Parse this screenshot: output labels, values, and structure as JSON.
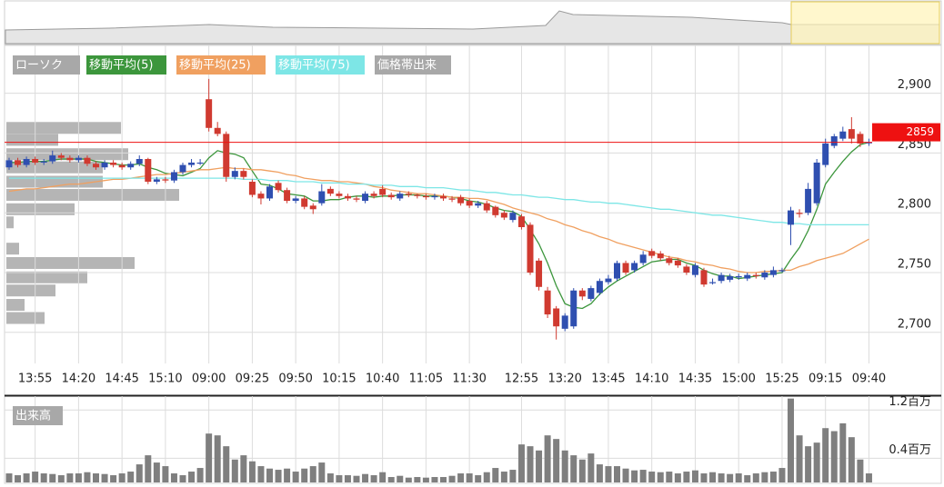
{
  "chart_data": {
    "type": "candlestick",
    "candle_name": "ローソク",
    "up_color": "#2f4fb0",
    "down_color": "#d03a30",
    "categories": [
      null,
      null,
      null,
      "13:55",
      null,
      null,
      null,
      null,
      "14:20",
      null,
      null,
      null,
      null,
      "14:45",
      null,
      null,
      null,
      null,
      "15:10",
      null,
      null,
      null,
      null,
      "09:00",
      null,
      null,
      null,
      null,
      "09:25",
      null,
      null,
      null,
      null,
      "09:50",
      null,
      null,
      null,
      null,
      "10:15",
      null,
      null,
      null,
      null,
      "10:40",
      null,
      null,
      null,
      null,
      "11:05",
      null,
      null,
      null,
      null,
      "11:30",
      null,
      null,
      null,
      null,
      null,
      "12:55",
      null,
      null,
      null,
      null,
      "13:20",
      null,
      null,
      null,
      null,
      "13:45",
      null,
      null,
      null,
      null,
      "14:10",
      null,
      null,
      null,
      null,
      "14:35",
      null,
      null,
      null,
      null,
      "15:00",
      null,
      null,
      null,
      null,
      "15:25",
      null,
      null,
      null,
      null,
      "09:15",
      null,
      null,
      null,
      null,
      "09:40"
    ],
    "open": [
      2838,
      2844,
      2840,
      2845,
      2842,
      2843,
      2848,
      2846,
      2844,
      2846,
      2841,
      2838,
      2842,
      2840,
      2838,
      2841,
      2845,
      2826,
      2828,
      2827,
      2834,
      2840,
      2842,
      2895,
      2871,
      2866,
      2830,
      2835,
      2826,
      2816,
      2812,
      2825,
      2819,
      2810,
      2812,
      2806,
      2808,
      2820,
      2816,
      2814,
      2812,
      2810,
      2816,
      2820,
      2815,
      2812,
      2816,
      2815,
      2814,
      2813,
      2814,
      2812,
      2813,
      2810,
      2806,
      2808,
      2805,
      2800,
      2794,
      2797,
      2790,
      2760,
      2735,
      2720,
      2703,
      2705,
      2735,
      2728,
      2733,
      2742,
      2745,
      2758,
      2752,
      2758,
      2768,
      2766,
      2762,
      2760,
      2755,
      2748,
      2752,
      2742,
      2743,
      2744,
      2746,
      2745,
      2748,
      2746,
      2748,
      2752,
      2790,
      2800,
      2800,
      2808,
      2840,
      2856,
      2862,
      2870,
      2866,
      2859
    ],
    "high": [
      2846,
      2846,
      2847,
      2847,
      2845,
      2852,
      2850,
      2848,
      2848,
      2848,
      2843,
      2844,
      2844,
      2842,
      2843,
      2848,
      2846,
      2830,
      2830,
      2836,
      2842,
      2845,
      2845,
      2912,
      2876,
      2868,
      2838,
      2837,
      2828,
      2818,
      2824,
      2827,
      2821,
      2814,
      2814,
      2808,
      2824,
      2822,
      2818,
      2816,
      2814,
      2818,
      2818,
      2823,
      2817,
      2818,
      2818,
      2816,
      2816,
      2816,
      2816,
      2814,
      2815,
      2812,
      2810,
      2810,
      2806,
      2802,
      2802,
      2799,
      2792,
      2762,
      2738,
      2722,
      2716,
      2737,
      2737,
      2739,
      2745,
      2748,
      2760,
      2760,
      2760,
      2768,
      2770,
      2768,
      2764,
      2762,
      2757,
      2758,
      2754,
      2745,
      2750,
      2749,
      2749,
      2750,
      2750,
      2752,
      2755,
      2754,
      2805,
      2803,
      2825,
      2845,
      2862,
      2866,
      2872,
      2880,
      2868,
      2862
    ],
    "low": [
      2836,
      2838,
      2838,
      2840,
      2840,
      2841,
      2844,
      2842,
      2842,
      2839,
      2836,
      2836,
      2838,
      2836,
      2836,
      2839,
      2824,
      2824,
      2825,
      2825,
      2832,
      2838,
      2840,
      2868,
      2864,
      2826,
      2828,
      2828,
      2813,
      2807,
      2810,
      2817,
      2808,
      2808,
      2803,
      2799,
      2806,
      2814,
      2812,
      2810,
      2809,
      2808,
      2812,
      2813,
      2811,
      2810,
      2813,
      2812,
      2811,
      2811,
      2810,
      2809,
      2806,
      2804,
      2804,
      2800,
      2796,
      2794,
      2792,
      2786,
      2748,
      2735,
      2712,
      2694,
      2701,
      2703,
      2727,
      2726,
      2731,
      2740,
      2743,
      2748,
      2750,
      2756,
      2762,
      2760,
      2756,
      2754,
      2748,
      2746,
      2738,
      2740,
      2741,
      2742,
      2744,
      2743,
      2745,
      2744,
      2746,
      2750,
      2773,
      2796,
      2798,
      2806,
      2838,
      2854,
      2860,
      2858,
      2855,
      2856
    ],
    "close": [
      2844,
      2840,
      2845,
      2842,
      2843,
      2848,
      2846,
      2844,
      2846,
      2841,
      2838,
      2842,
      2840,
      2838,
      2841,
      2845,
      2826,
      2828,
      2827,
      2834,
      2840,
      2842,
      2842,
      2871,
      2866,
      2830,
      2835,
      2830,
      2815,
      2812,
      2822,
      2819,
      2810,
      2812,
      2805,
      2803,
      2818,
      2816,
      2814,
      2812,
      2811,
      2816,
      2814,
      2815,
      2813,
      2816,
      2815,
      2814,
      2813,
      2814,
      2812,
      2811,
      2808,
      2806,
      2808,
      2802,
      2798,
      2796,
      2800,
      2788,
      2750,
      2738,
      2715,
      2705,
      2714,
      2735,
      2730,
      2737,
      2743,
      2745,
      2758,
      2750,
      2758,
      2765,
      2764,
      2762,
      2758,
      2756,
      2750,
      2756,
      2740,
      2742,
      2748,
      2747,
      2747,
      2748,
      2747,
      2750,
      2752,
      2752,
      2802,
      2799,
      2820,
      2842,
      2858,
      2864,
      2868,
      2862,
      2858,
      2859
    ],
    "series": [
      {
        "name": "移動平均(5)",
        "color": "#3c963c",
        "values": [
          2842,
          2842,
          2843,
          2843,
          2843,
          2844,
          2845,
          2845,
          2845,
          2845,
          2843,
          2842,
          2841,
          2840,
          2840,
          2841,
          2838,
          2836,
          2833,
          2832,
          2831,
          2834,
          2837,
          2846,
          2852,
          2850,
          2849,
          2846,
          2835,
          2824,
          2823,
          2820,
          2816,
          2815,
          2814,
          2810,
          2810,
          2811,
          2811,
          2813,
          2814,
          2814,
          2813,
          2814,
          2814,
          2815,
          2815,
          2815,
          2814,
          2814,
          2814,
          2813,
          2812,
          2810,
          2809,
          2807,
          2804,
          2802,
          2801,
          2797,
          2786,
          2774,
          2758,
          2739,
          2724,
          2721,
          2720,
          2724,
          2732,
          2738,
          2743,
          2747,
          2751,
          2755,
          2759,
          2760,
          2761,
          2761,
          2758,
          2756,
          2752,
          2749,
          2747,
          2747,
          2745,
          2746,
          2747,
          2748,
          2749,
          2750,
          2761,
          2771,
          2785,
          2803,
          2824,
          2834,
          2843,
          2851,
          2857,
          2859
        ]
      },
      {
        "name": "移動平均(25)",
        "color": "#f0a060",
        "values": [
          2818,
          2819,
          2820,
          2820,
          2821,
          2822,
          2823,
          2824,
          2824,
          2825,
          2826,
          2827,
          2828,
          2828,
          2829,
          2830,
          2831,
          2832,
          2832,
          2833,
          2834,
          2835,
          2836,
          2836,
          2837,
          2838,
          2837,
          2837,
          2836,
          2836,
          2835,
          2834,
          2832,
          2831,
          2829,
          2828,
          2827,
          2827,
          2826,
          2826,
          2825,
          2824,
          2822,
          2821,
          2819,
          2818,
          2817,
          2816,
          2816,
          2815,
          2814,
          2813,
          2813,
          2812,
          2812,
          2811,
          2809,
          2807,
          2804,
          2802,
          2800,
          2798,
          2795,
          2793,
          2790,
          2788,
          2785,
          2783,
          2780,
          2778,
          2775,
          2773,
          2771,
          2769,
          2767,
          2765,
          2763,
          2762,
          2760,
          2759,
          2757,
          2756,
          2754,
          2753,
          2751,
          2750,
          2750,
          2751,
          2751,
          2752,
          2752,
          2755,
          2757,
          2760,
          2762,
          2764,
          2766,
          2770,
          2774,
          2778
        ]
      },
      {
        "name": "移動平均(75)",
        "color": "#7de6e6",
        "values": [
          2829,
          2829,
          2829,
          2829,
          2829,
          2829,
          2829,
          2829,
          2829,
          2829,
          2829,
          2829,
          2829,
          2829,
          2829,
          2829,
          2829,
          2829,
          2829,
          2829,
          2829,
          2829,
          2829,
          2829,
          2829,
          2829,
          2829,
          2828,
          2828,
          2828,
          2827,
          2827,
          2827,
          2826,
          2826,
          2826,
          2825,
          2825,
          2825,
          2824,
          2824,
          2824,
          2823,
          2823,
          2823,
          2822,
          2822,
          2822,
          2821,
          2821,
          2821,
          2820,
          2819,
          2819,
          2818,
          2817,
          2817,
          2816,
          2815,
          2815,
          2814,
          2813,
          2813,
          2812,
          2811,
          2811,
          2810,
          2809,
          2809,
          2808,
          2808,
          2807,
          2806,
          2805,
          2804,
          2803,
          2803,
          2802,
          2801,
          2800,
          2799,
          2798,
          2798,
          2797,
          2796,
          2795,
          2794,
          2793,
          2792,
          2792,
          2791,
          2791,
          2790,
          2790,
          2790,
          2790,
          2790,
          2790,
          2790,
          2790
        ]
      }
    ],
    "ylim": [
      2674,
      2940
    ],
    "yticks": [
      {
        "value": 2900,
        "label": "2,900"
      },
      {
        "value": 2850,
        "label": "2,850"
      },
      {
        "value": 2800,
        "label": "2,800"
      },
      {
        "value": 2750,
        "label": "2,750"
      },
      {
        "value": 2700,
        "label": "2,700"
      }
    ],
    "grid": true,
    "last_price": 2859,
    "last_price_color": "#ee1111",
    "profile": {
      "name": "価格帯出来",
      "color": "#a8a8a8",
      "prices": [
        2871,
        2861,
        2849,
        2838,
        2826,
        2815,
        2803,
        2792,
        2770,
        2758,
        2746,
        2735,
        2723,
        2712
      ],
      "values": [
        126,
        57,
        134,
        106,
        106,
        190,
        75,
        8,
        14,
        141,
        89,
        54,
        20,
        42
      ],
      "xlim": [
        0,
        200
      ]
    },
    "volume": {
      "name": "出来高",
      "color": "#7f7f7f",
      "values": [
        0.15,
        0.12,
        0.15,
        0.18,
        0.15,
        0.14,
        0.12,
        0.15,
        0.15,
        0.17,
        0.15,
        0.14,
        0.12,
        0.15,
        0.18,
        0.3,
        0.45,
        0.33,
        0.27,
        0.15,
        0.12,
        0.18,
        0.24,
        0.81,
        0.78,
        0.6,
        0.38,
        0.45,
        0.35,
        0.27,
        0.23,
        0.21,
        0.23,
        0.18,
        0.23,
        0.27,
        0.33,
        0.15,
        0.12,
        0.12,
        0.11,
        0.14,
        0.12,
        0.17,
        0.09,
        0.11,
        0.08,
        0.09,
        0.08,
        0.09,
        0.09,
        0.11,
        0.15,
        0.15,
        0.12,
        0.17,
        0.24,
        0.18,
        0.21,
        0.63,
        0.6,
        0.53,
        0.78,
        0.72,
        0.53,
        0.45,
        0.38,
        0.48,
        0.3,
        0.27,
        0.27,
        0.23,
        0.2,
        0.21,
        0.18,
        0.17,
        0.18,
        0.15,
        0.18,
        0.2,
        0.15,
        0.17,
        0.15,
        0.14,
        0.15,
        0.12,
        0.15,
        0.17,
        0.18,
        0.24,
        1.39,
        0.78,
        0.6,
        0.66,
        0.9,
        0.85,
        0.98,
        0.75,
        0.38,
        0.15
      ],
      "ylim": [
        0,
        1.43
      ],
      "yticks": [
        {
          "value": 1.2,
          "label": "1.2百万"
        },
        {
          "value": 0.4,
          "label": "0.4百万"
        }
      ]
    }
  }
}
